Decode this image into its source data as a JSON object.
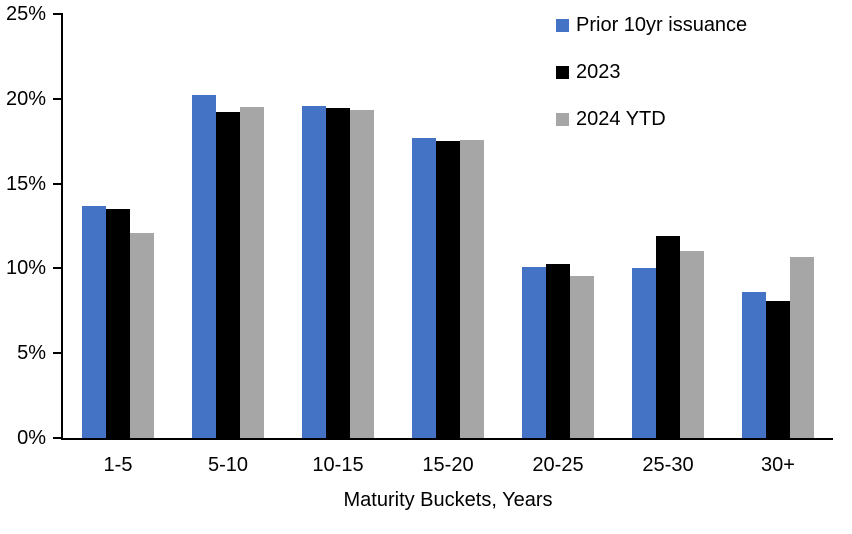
{
  "chart_data": {
    "type": "bar",
    "title": "",
    "xlabel": "Maturity Buckets, Years",
    "ylabel": "",
    "categories": [
      "1-5",
      "5-10",
      "10-15",
      "15-20",
      "20-25",
      "25-30",
      "30+"
    ],
    "series": [
      {
        "name": "Prior 10yr issuance",
        "color": "#4472C4",
        "values": [
          13.7,
          20.2,
          19.6,
          17.7,
          10.1,
          10.0,
          8.6
        ]
      },
      {
        "name": "2023",
        "color": "#000000",
        "values": [
          13.5,
          19.25,
          19.45,
          17.5,
          10.25,
          11.9,
          8.1
        ]
      },
      {
        "name": "2024 YTD",
        "color": "#A6A6A6",
        "values": [
          12.1,
          19.5,
          19.35,
          17.6,
          9.55,
          11.0,
          10.65
        ]
      }
    ],
    "ylim": [
      0,
      25
    ],
    "ytick_step": 5,
    "ytick_suffix": "%",
    "grid": false,
    "legend_position": "top-right",
    "axis_color": "#000000"
  }
}
